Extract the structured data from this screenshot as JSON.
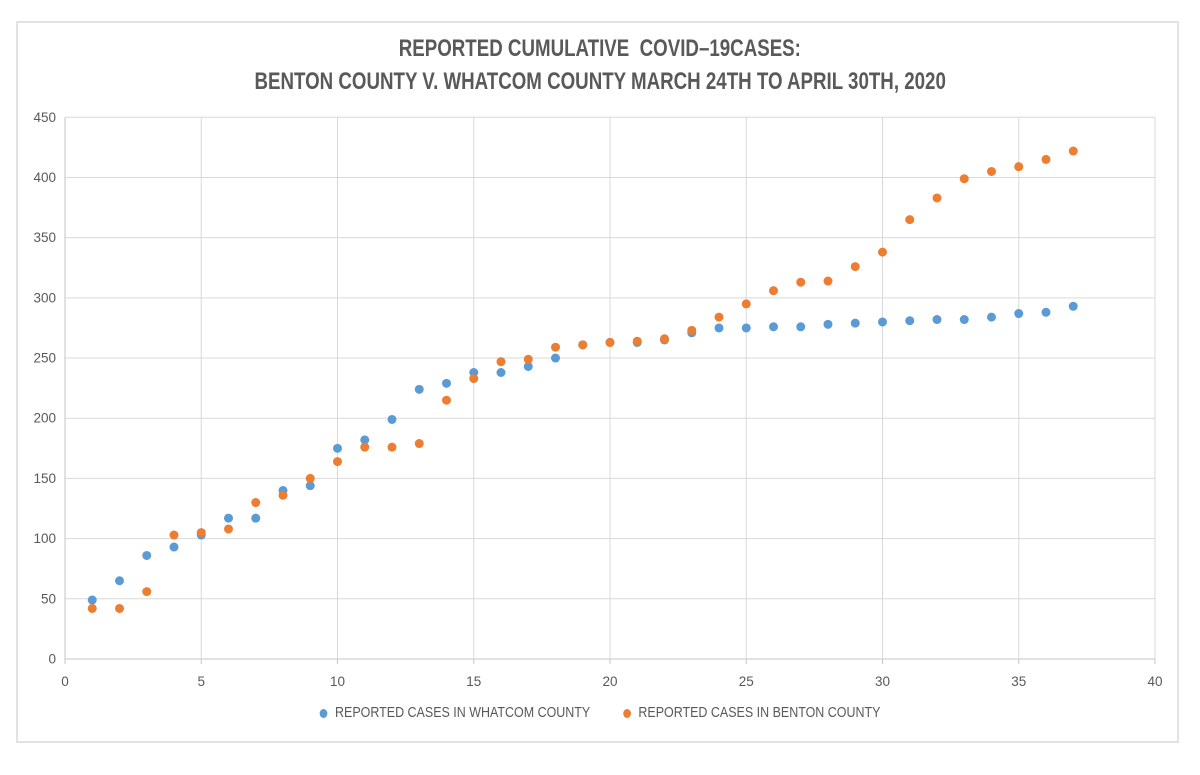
{
  "chart_data": {
    "type": "scatter",
    "title_lines": [
      "REPORTED CUMULATIVE  COVID–19CASES:",
      "BENTON COUNTY V. WHATCOM COUNTY MARCH 24TH TO APRIL 30TH, 2020"
    ],
    "x": [
      1,
      2,
      3,
      4,
      5,
      6,
      7,
      8,
      9,
      10,
      11,
      12,
      13,
      14,
      15,
      16,
      17,
      18,
      19,
      20,
      21,
      22,
      23,
      24,
      25,
      26,
      27,
      28,
      29,
      30,
      31,
      32,
      33,
      34,
      35,
      36,
      37
    ],
    "series": [
      {
        "name": "REPORTED CASES IN WHATCOM COUNTY",
        "color": "#5B9BD5",
        "values": [
          49,
          65,
          86,
          93,
          103,
          117,
          117,
          140,
          144,
          175,
          182,
          199,
          224,
          229,
          238,
          238,
          243,
          250,
          261,
          263,
          263,
          265,
          271,
          275,
          275,
          276,
          276,
          278,
          279,
          280,
          281,
          282,
          282,
          284,
          287,
          288,
          293
        ]
      },
      {
        "name": "REPORTED CASES IN BENTON COUNTY",
        "color": "#ED7D31",
        "values": [
          42,
          42,
          56,
          103,
          105,
          108,
          130,
          136,
          150,
          164,
          176,
          176,
          179,
          215,
          233,
          247,
          249,
          259,
          261,
          263,
          264,
          266,
          273,
          284,
          295,
          306,
          313,
          314,
          326,
          338,
          365,
          383,
          399,
          405,
          409,
          415,
          422
        ]
      }
    ],
    "xlim": [
      0,
      40
    ],
    "ylim": [
      0,
      450
    ],
    "xticks": [
      0,
      5,
      10,
      15,
      20,
      25,
      30,
      35,
      40
    ],
    "yticks": [
      0,
      50,
      100,
      150,
      200,
      250,
      300,
      350,
      400,
      450
    ],
    "grid": true,
    "legend_position": "bottom",
    "marker_radius": 4.5,
    "colors": {
      "gridline": "#D9D9D9",
      "axis": "#C6C6C6",
      "tick_text": "#595959",
      "title_text": "#595959",
      "frame_border": "#E2E2E2"
    }
  }
}
